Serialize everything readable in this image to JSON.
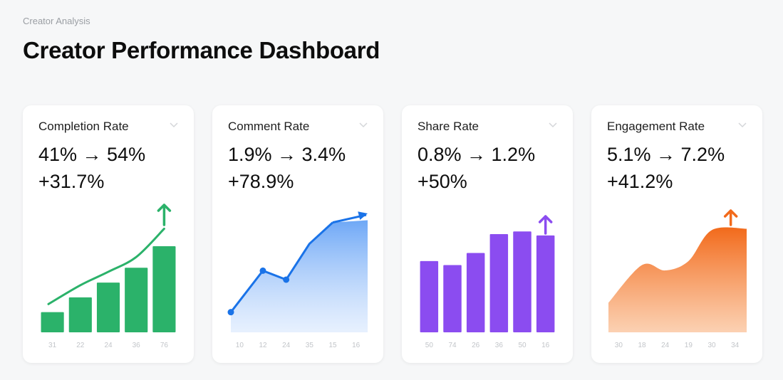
{
  "header": {
    "breadcrumb": "Creator Analysis",
    "title": "Creator Performance Dashboard"
  },
  "cards": [
    {
      "label": "Completion Rate",
      "range": "41% → 54%",
      "change": "+31.7%",
      "color": "#2bb26a",
      "icon": "chevron-down-icon",
      "trend_icon": "arrow-up-icon"
    },
    {
      "label": "Comment Rate",
      "range": "1.9% → 3.4%",
      "change": "+78.9%",
      "color": "#1a73e8",
      "icon": "chevron-down-icon",
      "trend_icon": "arrow-up-right-icon"
    },
    {
      "label": "Share Rate",
      "range": "0.8% → 1.2%",
      "change": "+50%",
      "color": "#8b4cf0",
      "icon": "chevron-down-icon",
      "trend_icon": "arrow-up-icon"
    },
    {
      "label": "Engagement Rate",
      "range": "5.1% → 7.2%",
      "change": "+41.2%",
      "color": "#f26a1b",
      "icon": "chevron-down-icon",
      "trend_icon": "arrow-up-icon"
    }
  ],
  "chart_data": [
    {
      "type": "bar",
      "title": "Completion Rate",
      "categories": [
        "31",
        "22",
        "24",
        "36",
        "76"
      ],
      "values": [
        0.15,
        0.26,
        0.37,
        0.48,
        0.64
      ],
      "trendline": [
        0.21,
        0.35,
        0.45,
        0.56,
        0.77
      ],
      "ylim": [
        0,
        1
      ],
      "grid": false
    },
    {
      "type": "line",
      "title": "Comment Rate",
      "categories": [
        "10",
        "12",
        "24",
        "35",
        "15",
        "16"
      ],
      "values": [
        0.18,
        0.55,
        0.47,
        0.79,
        0.98,
        1.0
      ],
      "markers": [
        0,
        1,
        2
      ],
      "fill_area": true,
      "ylim": [
        0,
        1.2
      ],
      "grid": false
    },
    {
      "type": "bar",
      "title": "Share Rate",
      "categories": [
        "50",
        "74",
        "26",
        "36",
        "50",
        "16"
      ],
      "values": [
        0.53,
        0.5,
        0.59,
        0.73,
        0.75,
        0.72
      ],
      "ylim": [
        0,
        1
      ],
      "grid": false
    },
    {
      "type": "area",
      "title": "Engagement Rate",
      "categories": [
        "30",
        "18",
        "24",
        "19",
        "30",
        "34"
      ],
      "values": [
        0.22,
        0.5,
        0.46,
        0.53,
        0.76,
        0.77
      ],
      "ylim": [
        0,
        1
      ],
      "grid": false
    }
  ]
}
